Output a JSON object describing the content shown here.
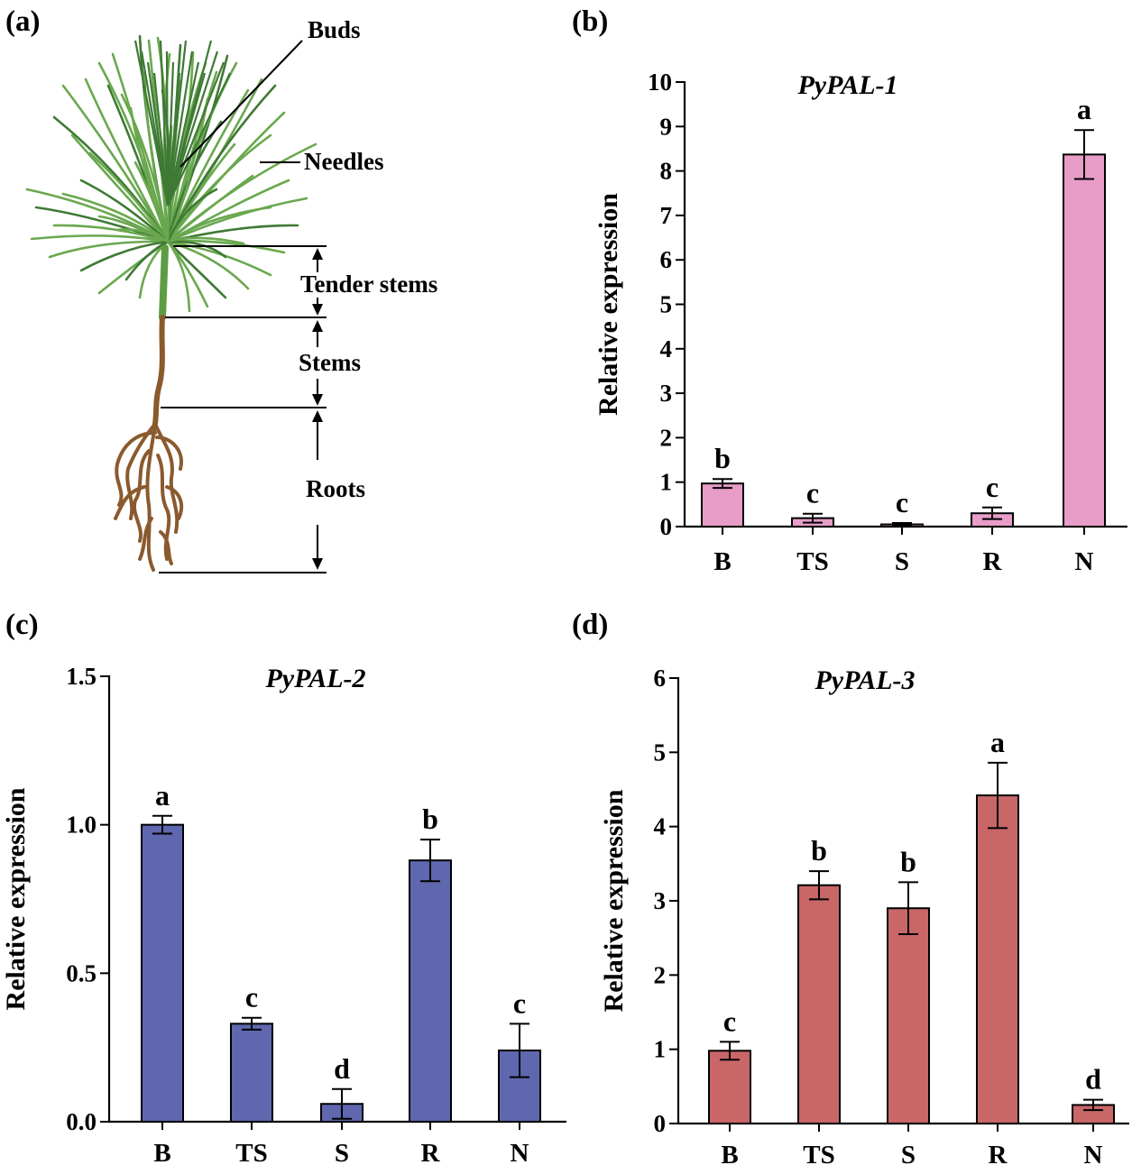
{
  "figure": {
    "panel_labels": [
      "(a)",
      "(b)",
      "(c)",
      "(d)"
    ],
    "plant_diagram": {
      "labels": {
        "buds": "Buds",
        "needles": "Needles",
        "tender_stems": "Tender stems",
        "stems": "Stems",
        "roots": "Roots"
      },
      "colors": {
        "needle": "#6aa84f",
        "needle_dark": "#3f7a35",
        "stem": "#8b5a2b",
        "root": "#8a5a2e"
      }
    }
  },
  "chart_data": [
    {
      "panel": "(b)",
      "type": "bar",
      "title": "PyPAL-1",
      "xlabel": "",
      "ylabel": "Relative expression",
      "categories": [
        "B",
        "TS",
        "S",
        "R",
        "N"
      ],
      "values": [
        0.97,
        0.19,
        0.05,
        0.3,
        8.37
      ],
      "errors": [
        0.1,
        0.1,
        0.03,
        0.13,
        0.55
      ],
      "significance": [
        "b",
        "c",
        "c",
        "c",
        "a"
      ],
      "ylim": [
        0,
        10
      ],
      "yticks": [
        0,
        1,
        2,
        3,
        4,
        5,
        6,
        7,
        8,
        9,
        10
      ],
      "ytick_labels": [
        "0",
        "1",
        "2",
        "3",
        "4",
        "5",
        "6",
        "7",
        "8",
        "9",
        "10"
      ],
      "bar_color": "#e79dc8",
      "grid": false
    },
    {
      "panel": "(c)",
      "type": "bar",
      "title": "PyPAL-2",
      "xlabel": "",
      "ylabel": "Relative expression",
      "categories": [
        "B",
        "TS",
        "S",
        "R",
        "N"
      ],
      "values": [
        1.0,
        0.33,
        0.06,
        0.88,
        0.24
      ],
      "errors": [
        0.03,
        0.02,
        0.05,
        0.07,
        0.09
      ],
      "significance": [
        "a",
        "c",
        "d",
        "b",
        "c"
      ],
      "ylim": [
        0,
        1.5
      ],
      "yticks": [
        0,
        0.5,
        1.0,
        1.5
      ],
      "ytick_labels": [
        "0.0",
        "0.5",
        "1.0",
        "1.5"
      ],
      "bar_color": "#5f67ae",
      "grid": false
    },
    {
      "panel": "(d)",
      "type": "bar",
      "title": "PyPAL-3",
      "xlabel": "",
      "ylabel": "Relative expression",
      "categories": [
        "B",
        "TS",
        "S",
        "R",
        "N"
      ],
      "values": [
        0.98,
        3.21,
        2.9,
        4.42,
        0.25
      ],
      "errors": [
        0.12,
        0.19,
        0.35,
        0.44,
        0.07
      ],
      "significance": [
        "c",
        "b",
        "b",
        "a",
        "d"
      ],
      "ylim": [
        0,
        6
      ],
      "yticks": [
        0,
        1,
        2,
        3,
        4,
        5,
        6
      ],
      "ytick_labels": [
        "0",
        "1",
        "2",
        "3",
        "4",
        "5",
        "6"
      ],
      "bar_color": "#c96668",
      "grid": false
    }
  ]
}
